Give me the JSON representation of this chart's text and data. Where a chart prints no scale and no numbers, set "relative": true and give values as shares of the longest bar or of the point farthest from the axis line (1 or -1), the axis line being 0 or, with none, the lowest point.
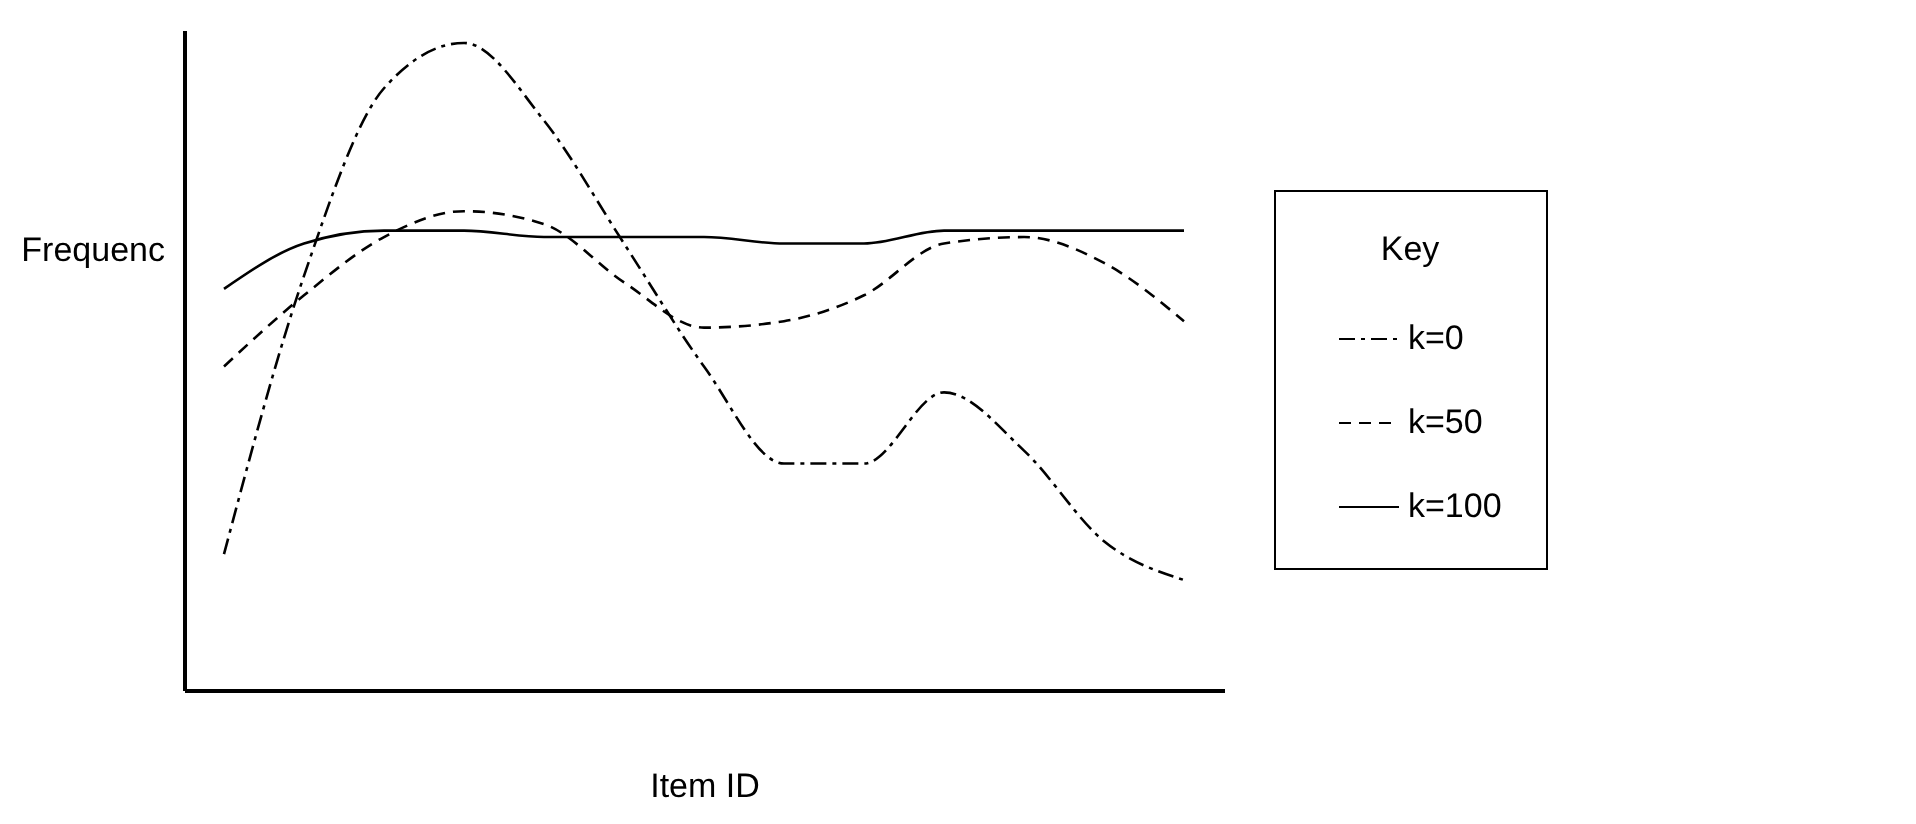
{
  "chart_data": {
    "type": "line",
    "relative": true,
    "xlabel": "Item ID",
    "ylabel": "Frequenc",
    "legend_title": "Key",
    "legend": "right",
    "tick_labels": false,
    "grid": false,
    "categories": [
      null,
      null,
      null,
      null,
      null,
      null,
      null,
      null,
      null,
      null,
      null,
      null,
      null
    ],
    "series": [
      {
        "name": "k=0",
        "color": "#000000",
        "line_style": "dotted",
        "values": [
          0.21,
          0.64,
          0.93,
          1.0,
          0.88,
          0.69,
          0.5,
          0.35,
          0.35,
          0.46,
          0.37,
          0.23,
          0.17
        ]
      },
      {
        "name": "k=50",
        "color": "#000000",
        "line_style": "dashed",
        "values": [
          0.5,
          0.61,
          0.7,
          0.74,
          0.72,
          0.63,
          0.56,
          0.57,
          0.61,
          0.69,
          0.7,
          0.66,
          0.57
        ]
      },
      {
        "name": "k=100",
        "color": "#000000",
        "line_style": "solid",
        "values": [
          0.62,
          0.69,
          0.71,
          0.71,
          0.7,
          0.7,
          0.7,
          0.69,
          0.69,
          0.71,
          0.71,
          0.71,
          0.71
        ]
      }
    ]
  }
}
